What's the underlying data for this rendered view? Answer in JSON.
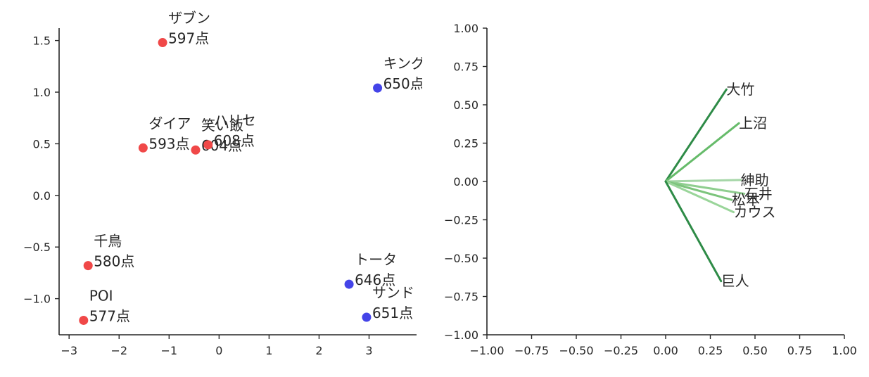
{
  "chart_data": [
    {
      "type": "scatter",
      "xlim": [
        -3.2,
        3.95
      ],
      "ylim": [
        -1.35,
        1.62
      ],
      "xticks": [
        -3,
        -2,
        -1,
        0,
        1,
        2,
        3
      ],
      "xtick_labels": [
        "−3",
        "−2",
        "−1",
        "0",
        "1",
        "2",
        "3"
      ],
      "yticks": [
        -1.0,
        -0.5,
        0.0,
        0.5,
        1.0,
        1.5
      ],
      "ytick_labels": [
        "−1.0",
        "−0.5",
        "0.0",
        "0.5",
        "1.0",
        "1.5"
      ],
      "grid": false,
      "colors": {
        "red": "#f04848",
        "blue": "#4444e8"
      },
      "points": [
        {
          "name": "ザブン",
          "score": "597点",
          "x": -1.13,
          "y": 1.48,
          "color": "red"
        },
        {
          "name": "キング",
          "score": "650点",
          "x": 3.17,
          "y": 1.04,
          "color": "blue"
        },
        {
          "name": "ダイア",
          "score": "593点",
          "x": -1.52,
          "y": 0.46,
          "color": "red"
        },
        {
          "name": "笑い飯",
          "score": "604点",
          "x": -0.47,
          "y": 0.44,
          "color": "red"
        },
        {
          "name": "ハリセ",
          "score": "608点",
          "x": -0.22,
          "y": 0.49,
          "color": "red"
        },
        {
          "name": "千鳥",
          "score": "580点",
          "x": -2.62,
          "y": -0.68,
          "color": "red"
        },
        {
          "name": "トータ",
          "score": "646点",
          "x": 2.6,
          "y": -0.86,
          "color": "blue"
        },
        {
          "name": "サンド",
          "score": "651点",
          "x": 2.95,
          "y": -1.18,
          "color": "blue"
        },
        {
          "name": "POI",
          "score": "577点",
          "x": -2.71,
          "y": -1.21,
          "color": "red"
        }
      ]
    },
    {
      "type": "vector",
      "xlim": [
        -1.0,
        1.0
      ],
      "ylim": [
        -1.0,
        1.0
      ],
      "xticks": [
        -1.0,
        -0.75,
        -0.5,
        -0.25,
        0.0,
        0.25,
        0.5,
        0.75,
        1.0
      ],
      "xtick_labels": [
        "−1.00",
        "−0.75",
        "−0.50",
        "−0.25",
        "0.00",
        "0.25",
        "0.50",
        "0.75",
        "1.00"
      ],
      "yticks": [
        -1.0,
        -0.75,
        -0.5,
        -0.25,
        0.0,
        0.25,
        0.5,
        0.75,
        1.0
      ],
      "ytick_labels": [
        "−1.00",
        "−0.75",
        "−0.50",
        "−0.25",
        "0.00",
        "0.25",
        "0.50",
        "0.75",
        "1.00"
      ],
      "grid": false,
      "vectors": [
        {
          "name": "大竹",
          "x": 0.34,
          "y": 0.6,
          "color": "#2e8b47"
        },
        {
          "name": "上沼",
          "x": 0.41,
          "y": 0.38,
          "color": "#66bb6a"
        },
        {
          "name": "紳助",
          "x": 0.42,
          "y": 0.01,
          "color": "#a5d6a7"
        },
        {
          "name": "石井",
          "x": 0.44,
          "y": -0.08,
          "color": "#8fce8f"
        },
        {
          "name": "松本",
          "x": 0.37,
          "y": -0.12,
          "color": "#7cc47c"
        },
        {
          "name": "カウス",
          "x": 0.38,
          "y": -0.2,
          "color": "#9ad59a"
        },
        {
          "name": "巨人",
          "x": 0.31,
          "y": -0.65,
          "color": "#2e8b47"
        }
      ]
    }
  ]
}
